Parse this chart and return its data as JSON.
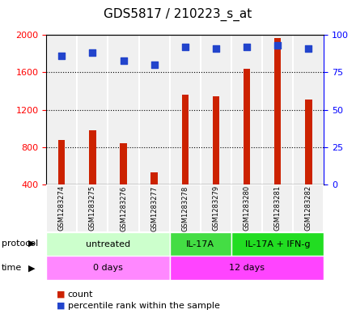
{
  "title": "GDS5817 / 210223_s_at",
  "samples": [
    "GSM1283274",
    "GSM1283275",
    "GSM1283276",
    "GSM1283277",
    "GSM1283278",
    "GSM1283279",
    "GSM1283280",
    "GSM1283281",
    "GSM1283282"
  ],
  "counts": [
    880,
    980,
    840,
    530,
    1360,
    1340,
    1640,
    1970,
    1310
  ],
  "percentiles": [
    86,
    88,
    83,
    80,
    92,
    91,
    92,
    93,
    91
  ],
  "ylim_left": [
    400,
    2000
  ],
  "ylim_right": [
    0,
    100
  ],
  "yticks_left": [
    400,
    800,
    1200,
    1600,
    2000
  ],
  "yticks_right": [
    0,
    25,
    50,
    75,
    100
  ],
  "bar_color": "#cc2200",
  "dot_color": "#2244cc",
  "bg_color": "#f0f0f0",
  "protocol_groups": [
    {
      "label": "untreated",
      "start": 0,
      "end": 4,
      "color": "#ccffcc"
    },
    {
      "label": "IL-17A",
      "start": 4,
      "end": 6,
      "color": "#44dd44"
    },
    {
      "label": "IL-17A + IFN-g",
      "start": 6,
      "end": 9,
      "color": "#22dd22"
    }
  ],
  "time_groups": [
    {
      "label": "0 days",
      "start": 0,
      "end": 4,
      "color": "#ff88ff"
    },
    {
      "label": "12 days",
      "start": 4,
      "end": 9,
      "color": "#ff44ff"
    }
  ],
  "legend_count_color": "#cc2200",
  "legend_pct_color": "#2244cc"
}
